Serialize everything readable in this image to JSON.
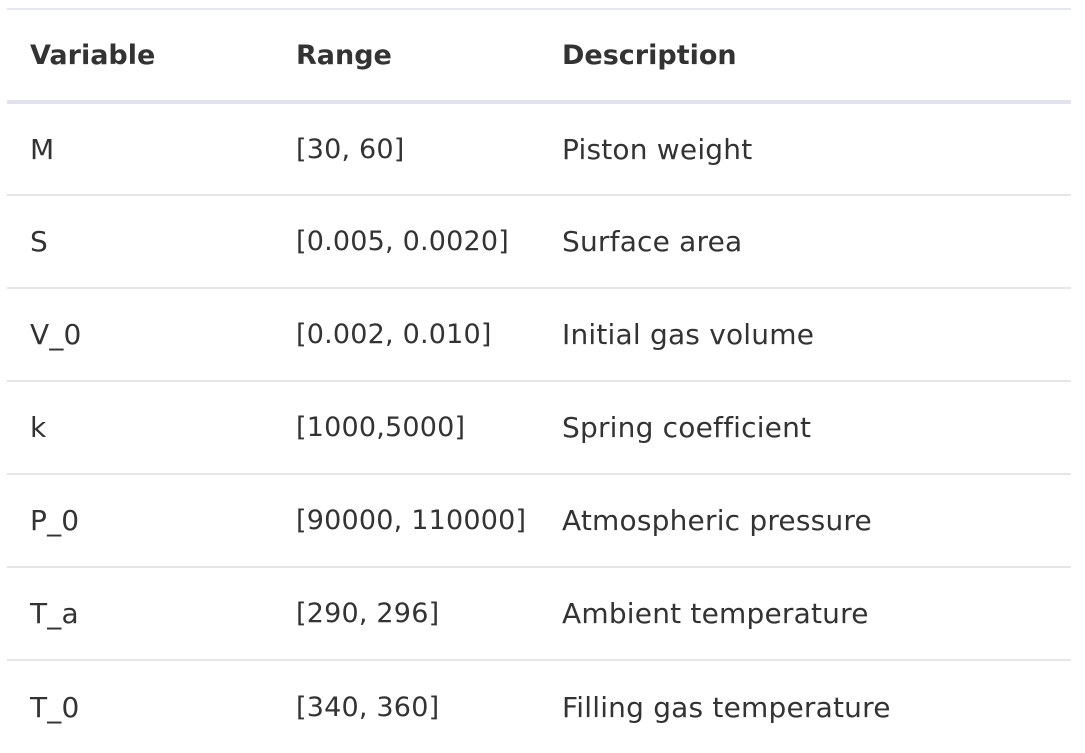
{
  "table": {
    "headers": [
      "Variable",
      "Range",
      "Description"
    ],
    "rows": [
      {
        "variable": "M",
        "range": "[30, 60]",
        "description": "Piston weight"
      },
      {
        "variable": "S",
        "range": "[0.005, 0.0020]",
        "description": "Surface area"
      },
      {
        "variable": "V_0",
        "range": "[0.002, 0.010]",
        "description": "Initial gas volume"
      },
      {
        "variable": "k",
        "range": "[1000,5000]",
        "description": "Spring coefficient"
      },
      {
        "variable": "P_0",
        "range": "[90000, 110000]",
        "description": "Atmospheric pressure"
      },
      {
        "variable": "T_a",
        "range": "[290, 296]",
        "description": "Ambient temperature"
      },
      {
        "variable": "T_0",
        "range": "[340, 360]",
        "description": "Filling gas temperature"
      }
    ]
  }
}
